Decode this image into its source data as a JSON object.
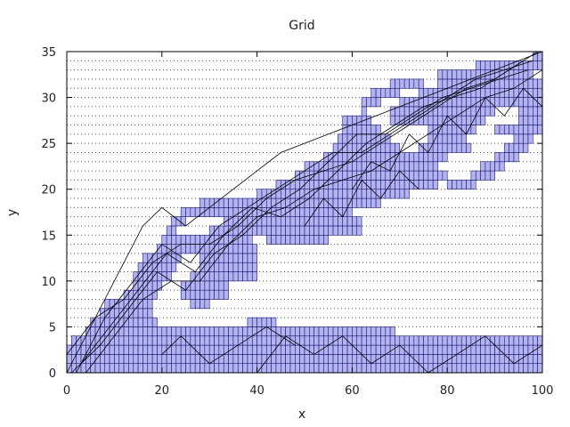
{
  "chart_data": {
    "type": "heatmap",
    "title": "Grid",
    "xlabel": "x",
    "ylabel": "y",
    "xlim": [
      0,
      100
    ],
    "ylim": [
      0,
      35
    ],
    "xticks": [
      0,
      20,
      40,
      60,
      80,
      100
    ],
    "yticks": [
      0,
      5,
      10,
      15,
      20,
      25,
      30,
      35
    ],
    "grid": true,
    "cell_width": 1,
    "cell_height": 1,
    "fill_color": "#b3b3f2",
    "edge_color": "#1a1a6e",
    "cells_rows": [
      {
        "y": 0,
        "x_ranges": [
          [
            0,
            100
          ]
        ]
      },
      {
        "y": 1,
        "x_ranges": [
          [
            0,
            100
          ]
        ]
      },
      {
        "y": 2,
        "x_ranges": [
          [
            0,
            100
          ]
        ]
      },
      {
        "y": 3,
        "x_ranges": [
          [
            1,
            100
          ]
        ]
      },
      {
        "y": 4,
        "x_ranges": [
          [
            4,
            69
          ]
        ]
      },
      {
        "y": 5,
        "x_ranges": [
          [
            5,
            19
          ],
          [
            38,
            44
          ]
        ]
      },
      {
        "y": 6,
        "x_ranges": [
          [
            7,
            18
          ]
        ]
      },
      {
        "y": 7,
        "x_ranges": [
          [
            8,
            18
          ],
          [
            26,
            30
          ]
        ]
      },
      {
        "y": 8,
        "x_ranges": [
          [
            12,
            19
          ],
          [
            24,
            34
          ]
        ]
      },
      {
        "y": 9,
        "x_ranges": [
          [
            14,
            20
          ],
          [
            24,
            34
          ]
        ]
      },
      {
        "y": 10,
        "x_ranges": [
          [
            14,
            22
          ],
          [
            26,
            40
          ]
        ]
      },
      {
        "y": 11,
        "x_ranges": [
          [
            15,
            23
          ],
          [
            28,
            40
          ]
        ]
      },
      {
        "y": 12,
        "x_ranges": [
          [
            16,
            24
          ],
          [
            28,
            40
          ]
        ]
      },
      {
        "y": 13,
        "x_ranges": [
          [
            19,
            40
          ]
        ]
      },
      {
        "y": 14,
        "x_ranges": [
          [
            20,
            39
          ],
          [
            42,
            55
          ]
        ]
      },
      {
        "y": 15,
        "x_ranges": [
          [
            21,
            23
          ],
          [
            30,
            62
          ]
        ]
      },
      {
        "y": 16,
        "x_ranges": [
          [
            22,
            25
          ],
          [
            33,
            62
          ]
        ]
      },
      {
        "y": 17,
        "x_ranges": [
          [
            24,
            60
          ]
        ]
      },
      {
        "y": 18,
        "x_ranges": [
          [
            28,
            66
          ]
        ]
      },
      {
        "y": 19,
        "x_ranges": [
          [
            40,
            72
          ]
        ]
      },
      {
        "y": 20,
        "x_ranges": [
          [
            44,
            78
          ],
          [
            80,
            86
          ]
        ]
      },
      {
        "y": 21,
        "x_ranges": [
          [
            48,
            80
          ],
          [
            85,
            90
          ]
        ]
      },
      {
        "y": 22,
        "x_ranges": [
          [
            50,
            78
          ],
          [
            87,
            92
          ]
        ]
      },
      {
        "y": 23,
        "x_ranges": [
          [
            54,
            80
          ],
          [
            90,
            95
          ]
        ]
      },
      {
        "y": 24,
        "x_ranges": [
          [
            56,
            70
          ],
          [
            74,
            85
          ],
          [
            92,
            97
          ]
        ]
      },
      {
        "y": 25,
        "x_ranges": [
          [
            57,
            68
          ],
          [
            76,
            84
          ],
          [
            94,
            98
          ]
        ]
      },
      {
        "y": 26,
        "x_ranges": [
          [
            58,
            66
          ],
          [
            76,
            86
          ],
          [
            90,
            100
          ]
        ]
      },
      {
        "y": 27,
        "x_ranges": [
          [
            58,
            64
          ],
          [
            68,
            88
          ],
          [
            95,
            100
          ]
        ]
      },
      {
        "y": 28,
        "x_ranges": [
          [
            62,
            63
          ],
          [
            68,
            90
          ],
          [
            95,
            100
          ]
        ]
      },
      {
        "y": 29,
        "x_ranges": [
          [
            62,
            66
          ],
          [
            70,
            100
          ]
        ]
      },
      {
        "y": 30,
        "x_ranges": [
          [
            64,
            70
          ],
          [
            74,
            100
          ]
        ]
      },
      {
        "y": 31,
        "x_ranges": [
          [
            68,
            75
          ],
          [
            78,
            100
          ]
        ]
      },
      {
        "y": 32,
        "x_ranges": [
          [
            78,
            98
          ]
        ]
      },
      {
        "y": 33,
        "x_ranges": [
          [
            86,
            100
          ]
        ]
      },
      {
        "y": 34,
        "x_ranges": [
          [
            98,
            100
          ]
        ]
      }
    ],
    "lines": [
      [
        [
          0,
          0
        ],
        [
          4,
          4
        ],
        [
          8,
          8
        ],
        [
          12,
          12
        ],
        [
          16,
          16
        ],
        [
          20,
          18
        ],
        [
          25,
          16
        ],
        [
          30,
          18
        ],
        [
          35,
          20
        ],
        [
          40,
          22
        ],
        [
          45,
          24
        ],
        [
          50,
          25
        ],
        [
          55,
          26
        ],
        [
          60,
          27
        ],
        [
          65,
          28
        ],
        [
          70,
          29
        ],
        [
          75,
          30
        ],
        [
          80,
          31
        ],
        [
          85,
          32
        ],
        [
          90,
          33
        ],
        [
          95,
          34
        ],
        [
          100,
          35
        ]
      ],
      [
        [
          2,
          0
        ],
        [
          8,
          6
        ],
        [
          14,
          10
        ],
        [
          20,
          14
        ],
        [
          26,
          12
        ],
        [
          32,
          16
        ],
        [
          38,
          18
        ],
        [
          44,
          20
        ],
        [
          50,
          22
        ],
        [
          56,
          24
        ],
        [
          62,
          24
        ],
        [
          68,
          26
        ],
        [
          74,
          28
        ],
        [
          80,
          30
        ],
        [
          86,
          32
        ],
        [
          92,
          33
        ],
        [
          98,
          34
        ]
      ],
      [
        [
          4,
          0
        ],
        [
          10,
          4
        ],
        [
          16,
          8
        ],
        [
          22,
          10
        ],
        [
          28,
          10
        ],
        [
          34,
          14
        ],
        [
          40,
          17
        ],
        [
          46,
          18
        ],
        [
          52,
          20
        ],
        [
          58,
          21
        ],
        [
          64,
          22
        ],
        [
          70,
          24
        ],
        [
          76,
          26
        ],
        [
          82,
          28
        ],
        [
          88,
          30
        ],
        [
          94,
          31
        ],
        [
          100,
          33
        ]
      ],
      [
        [
          0,
          2
        ],
        [
          6,
          6
        ],
        [
          12,
          8
        ],
        [
          18,
          12
        ],
        [
          24,
          14
        ],
        [
          30,
          14
        ],
        [
          36,
          16
        ],
        [
          42,
          19
        ],
        [
          48,
          21
        ],
        [
          54,
          22
        ],
        [
          60,
          23
        ],
        [
          66,
          25
        ],
        [
          72,
          27
        ],
        [
          78,
          29
        ],
        [
          84,
          31
        ],
        [
          90,
          32
        ],
        [
          96,
          34
        ]
      ],
      [
        [
          3,
          1
        ],
        [
          9,
          5
        ],
        [
          15,
          9
        ],
        [
          21,
          13
        ],
        [
          27,
          11
        ],
        [
          33,
          15
        ],
        [
          39,
          18
        ],
        [
          45,
          17
        ],
        [
          51,
          19
        ],
        [
          57,
          22
        ],
        [
          63,
          25
        ],
        [
          69,
          27
        ],
        [
          75,
          29
        ],
        [
          81,
          30
        ],
        [
          87,
          31
        ],
        [
          93,
          33
        ],
        [
          99,
          35
        ]
      ],
      [
        [
          1,
          0
        ],
        [
          7,
          3
        ],
        [
          13,
          7
        ],
        [
          19,
          11
        ],
        [
          25,
          9
        ],
        [
          31,
          13
        ],
        [
          37,
          15
        ],
        [
          43,
          18
        ],
        [
          49,
          20
        ],
        [
          55,
          23
        ],
        [
          61,
          26
        ],
        [
          67,
          26
        ],
        [
          73,
          28
        ],
        [
          79,
          30
        ],
        [
          85,
          31
        ],
        [
          91,
          32
        ],
        [
          97,
          33
        ]
      ],
      [
        [
          40,
          0
        ],
        [
          46,
          4
        ],
        [
          52,
          2
        ],
        [
          58,
          4
        ],
        [
          64,
          1
        ],
        [
          70,
          3
        ],
        [
          76,
          0
        ],
        [
          82,
          2
        ],
        [
          88,
          4
        ],
        [
          94,
          1
        ],
        [
          100,
          3
        ]
      ],
      [
        [
          20,
          2
        ],
        [
          24,
          4
        ],
        [
          30,
          1
        ],
        [
          36,
          3
        ],
        [
          42,
          5
        ],
        [
          48,
          3
        ]
      ],
      [
        [
          60,
          20
        ],
        [
          64,
          23
        ],
        [
          68,
          22
        ],
        [
          72,
          26
        ],
        [
          76,
          24
        ],
        [
          80,
          28
        ],
        [
          84,
          26
        ],
        [
          88,
          30
        ],
        [
          92,
          28
        ],
        [
          96,
          31
        ],
        [
          100,
          29
        ]
      ],
      [
        [
          50,
          16
        ],
        [
          54,
          19
        ],
        [
          58,
          17
        ],
        [
          62,
          21
        ],
        [
          66,
          19
        ],
        [
          70,
          22
        ],
        [
          74,
          20
        ]
      ]
    ]
  }
}
